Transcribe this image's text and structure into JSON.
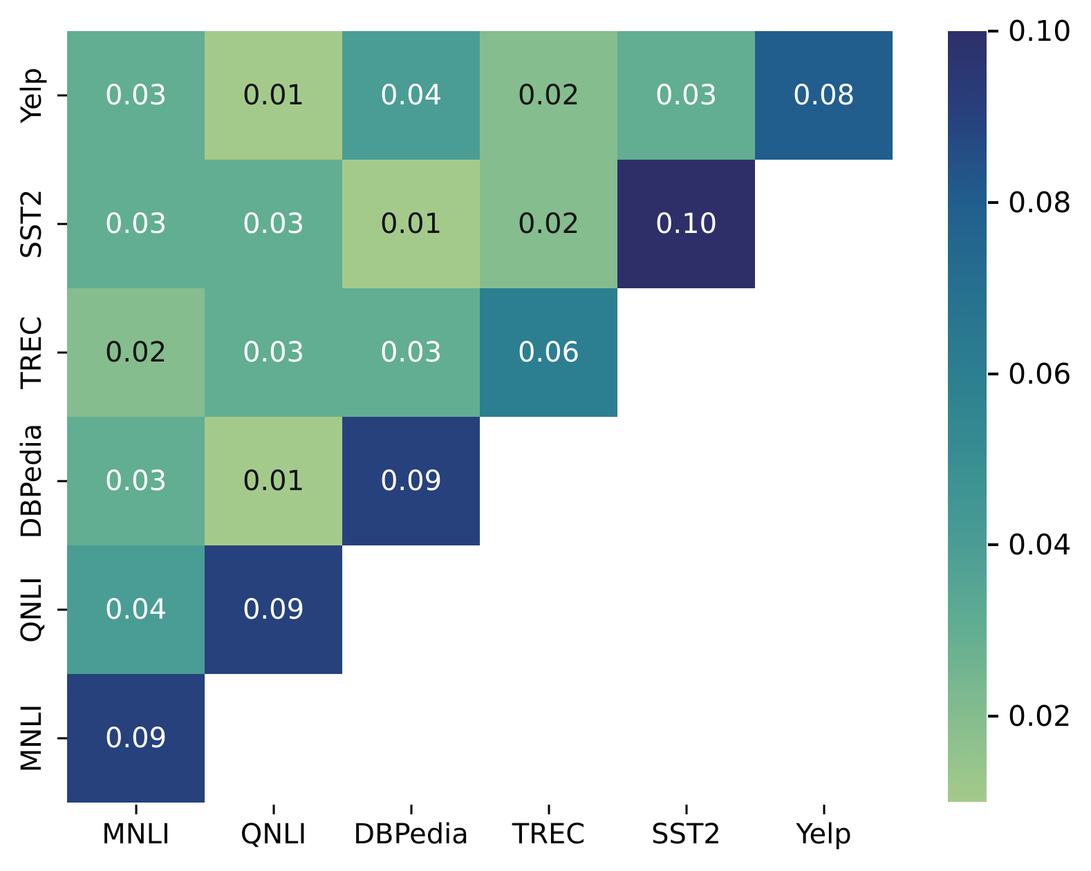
{
  "chart_data": {
    "type": "heatmap",
    "title": "",
    "xlabel": "",
    "ylabel": "",
    "x_categories": [
      "MNLI",
      "QNLI",
      "DBPedia",
      "TREC",
      "SST2",
      "Yelp"
    ],
    "y_categories": [
      "Yelp",
      "SST2",
      "TREC",
      "DBPedia",
      "QNLI",
      "MNLI"
    ],
    "shape": "lower-triangle-with-diagonal, y-axis reversed (MNLI at bottom)",
    "rows": [
      {
        "label": "Yelp",
        "values": [
          0.03,
          0.01,
          0.04,
          0.02,
          0.03,
          0.08
        ]
      },
      {
        "label": "SST2",
        "values": [
          0.03,
          0.03,
          0.01,
          0.02,
          0.1
        ]
      },
      {
        "label": "TREC",
        "values": [
          0.02,
          0.03,
          0.03,
          0.06
        ]
      },
      {
        "label": "DBPedia",
        "values": [
          0.03,
          0.01,
          0.09
        ]
      },
      {
        "label": "QNLI",
        "values": [
          0.04,
          0.09
        ]
      },
      {
        "label": "MNLI",
        "values": [
          0.09
        ]
      }
    ],
    "value_decimals": 2,
    "colormap": {
      "name": "crest",
      "stops": [
        {
          "value": 0.01,
          "color": "#a4ca8b"
        },
        {
          "value": 0.02,
          "color": "#85bd8e"
        },
        {
          "value": 0.03,
          "color": "#62ae92"
        },
        {
          "value": 0.04,
          "color": "#4a9d95"
        },
        {
          "value": 0.05,
          "color": "#388e92"
        },
        {
          "value": 0.06,
          "color": "#2c7f90"
        },
        {
          "value": 0.07,
          "color": "#26708f"
        },
        {
          "value": 0.08,
          "color": "#215e8e"
        },
        {
          "value": 0.09,
          "color": "#27417d"
        },
        {
          "value": 0.1,
          "color": "#2e2f69"
        }
      ]
    },
    "annotation_colors": {
      "light_text": "#ffffff",
      "dark_text": "#141414",
      "white_text_min_value": 0.03
    },
    "colorbar": {
      "vmin": 0.01,
      "vmax": 0.1,
      "ticks": [
        0.1,
        0.08,
        0.06,
        0.04,
        0.02
      ],
      "tick_labels": [
        "0.10",
        "0.08",
        "0.06",
        "0.04",
        "0.02"
      ],
      "position": "right"
    },
    "grid": false,
    "legend": false,
    "background_color": "#ffffff"
  }
}
